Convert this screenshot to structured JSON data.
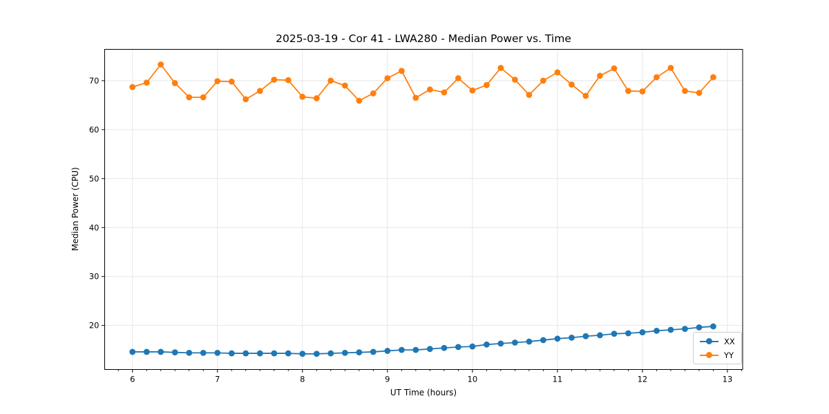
{
  "chart_data": {
    "type": "line",
    "title": "2025-03-19 - Cor 41 - LWA280 - Median Power vs. Time",
    "xlabel": "UT Time (hours)",
    "ylabel": "Median Power (CPU)",
    "xlim": [
      5.673,
      13.179
    ],
    "ylim": [
      11.0,
      76.4
    ],
    "xticks": [
      6,
      7,
      8,
      9,
      10,
      11,
      12,
      13
    ],
    "yticks": [
      20,
      30,
      40,
      50,
      60,
      70
    ],
    "x_minor_step_hours": 0.1667,
    "grid": true,
    "legend_position": "lower right",
    "x": [
      6.0,
      6.167,
      6.333,
      6.5,
      6.667,
      6.833,
      7.0,
      7.167,
      7.333,
      7.5,
      7.667,
      7.833,
      8.0,
      8.167,
      8.333,
      8.5,
      8.667,
      8.833,
      9.0,
      9.167,
      9.333,
      9.5,
      9.667,
      9.833,
      10.0,
      10.167,
      10.333,
      10.5,
      10.667,
      10.833,
      11.0,
      11.167,
      11.333,
      11.5,
      11.667,
      11.833,
      12.0,
      12.167,
      12.333,
      12.5,
      12.667,
      12.833
    ],
    "series": [
      {
        "name": "XX",
        "color": "#1f77b4",
        "values": [
          14.6,
          14.6,
          14.6,
          14.5,
          14.4,
          14.4,
          14.4,
          14.3,
          14.3,
          14.3,
          14.3,
          14.3,
          14.2,
          14.2,
          14.3,
          14.4,
          14.5,
          14.6,
          14.8,
          15.0,
          15.0,
          15.2,
          15.4,
          15.6,
          15.7,
          16.1,
          16.3,
          16.5,
          16.7,
          17.0,
          17.3,
          17.5,
          17.8,
          18.0,
          18.3,
          18.4,
          18.6,
          18.9,
          19.1,
          19.3,
          19.6,
          19.8
        ]
      },
      {
        "name": "YY",
        "color": "#ff7f0e",
        "values": [
          68.7,
          69.6,
          73.3,
          69.5,
          66.6,
          66.6,
          69.9,
          69.8,
          66.2,
          67.9,
          70.2,
          70.1,
          66.7,
          66.4,
          70.0,
          69.0,
          65.9,
          67.4,
          70.5,
          72.0,
          66.5,
          68.2,
          67.6,
          70.5,
          68.0,
          69.1,
          72.6,
          70.2,
          67.1,
          70.0,
          71.7,
          69.2,
          66.9,
          71.0,
          72.5,
          67.9,
          67.8,
          70.7,
          72.6,
          67.9,
          67.5,
          70.7
        ]
      }
    ]
  },
  "style": {
    "grid_color": "#e6e6e6",
    "spine_color": "#000000",
    "tick_label_color": "#000000"
  }
}
